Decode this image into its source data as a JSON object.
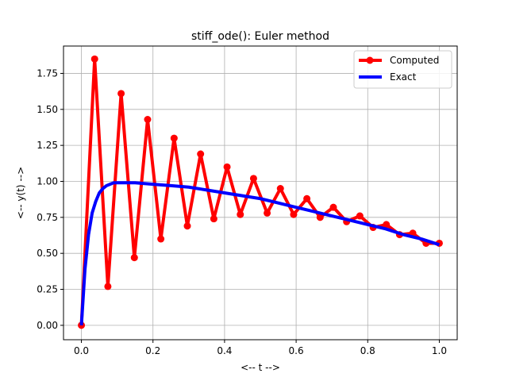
{
  "chart_data": {
    "type": "line",
    "title": "stiff_ode(): Euler method",
    "xlabel": "<-- t -->",
    "ylabel": "<-- y(t) -->",
    "xlim": [
      -0.05,
      1.05
    ],
    "ylim": [
      -0.1,
      1.94
    ],
    "xticks": [
      0.0,
      0.2,
      0.4,
      0.6,
      0.8,
      1.0
    ],
    "xtick_labels": [
      "0.0",
      "0.2",
      "0.4",
      "0.6",
      "0.8",
      "1.0"
    ],
    "yticks": [
      0.0,
      0.25,
      0.5,
      0.75,
      1.0,
      1.25,
      1.5,
      1.75
    ],
    "ytick_labels": [
      "0.00",
      "0.25",
      "0.50",
      "0.75",
      "1.00",
      "1.25",
      "1.50",
      "1.75"
    ],
    "grid": true,
    "legend_position": "top-right",
    "series": [
      {
        "name": "Computed",
        "color": "#ff0000",
        "marker": "circle",
        "x": [
          0.0,
          0.037,
          0.074,
          0.111,
          0.148,
          0.185,
          0.222,
          0.259,
          0.296,
          0.333,
          0.37,
          0.407,
          0.444,
          0.481,
          0.519,
          0.556,
          0.593,
          0.63,
          0.667,
          0.704,
          0.741,
          0.778,
          0.815,
          0.852,
          0.889,
          0.926,
          0.963,
          1.0
        ],
        "y": [
          0.0,
          1.85,
          0.27,
          1.61,
          0.47,
          1.43,
          0.6,
          1.3,
          0.69,
          1.19,
          0.74,
          1.1,
          0.77,
          1.02,
          0.78,
          0.95,
          0.77,
          0.88,
          0.75,
          0.82,
          0.72,
          0.76,
          0.68,
          0.7,
          0.63,
          0.64,
          0.57,
          0.57
        ]
      },
      {
        "name": "Exact",
        "color": "#0000ff",
        "marker": "none",
        "x": [
          0.0,
          0.01,
          0.02,
          0.03,
          0.04,
          0.05,
          0.06,
          0.07,
          0.08,
          0.09,
          0.1,
          0.12,
          0.15,
          0.2,
          0.25,
          0.3,
          0.35,
          0.4,
          0.45,
          0.5,
          0.55,
          0.6,
          0.65,
          0.7,
          0.75,
          0.8,
          0.85,
          0.9,
          0.95,
          1.0
        ],
        "y": [
          0.0,
          0.39,
          0.63,
          0.78,
          0.86,
          0.92,
          0.95,
          0.97,
          0.98,
          0.99,
          0.99,
          0.99,
          0.99,
          0.98,
          0.97,
          0.96,
          0.94,
          0.92,
          0.9,
          0.88,
          0.85,
          0.82,
          0.79,
          0.76,
          0.73,
          0.7,
          0.67,
          0.63,
          0.6,
          0.56
        ]
      }
    ]
  }
}
